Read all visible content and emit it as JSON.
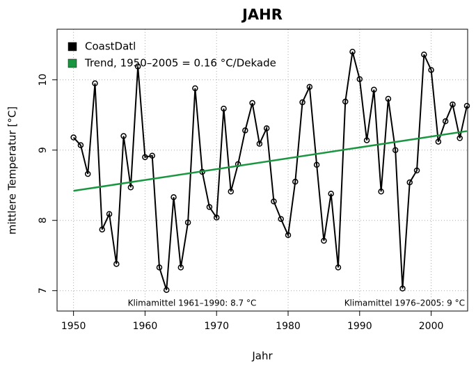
{
  "chart_data": {
    "type": "line",
    "title": "JAHR",
    "xlabel": "Jahr",
    "ylabel": "mittlere Temperatur [°C]",
    "x": [
      1950,
      1951,
      1952,
      1953,
      1954,
      1955,
      1956,
      1957,
      1958,
      1959,
      1960,
      1961,
      1962,
      1963,
      1964,
      1965,
      1966,
      1967,
      1968,
      1969,
      1970,
      1971,
      1972,
      1973,
      1974,
      1975,
      1976,
      1977,
      1978,
      1979,
      1980,
      1981,
      1982,
      1983,
      1984,
      1985,
      1986,
      1987,
      1988,
      1989,
      1990,
      1991,
      1992,
      1993,
      1994,
      1995,
      1996,
      1997,
      1998,
      1999,
      2000,
      2001,
      2002,
      2003,
      2004,
      2005
    ],
    "series": [
      {
        "name": "CoastDatl",
        "color": "#000000",
        "values": [
          9.18,
          9.07,
          8.66,
          9.95,
          7.87,
          8.09,
          7.38,
          9.2,
          8.47,
          10.19,
          8.9,
          8.92,
          7.33,
          7.01,
          8.33,
          7.33,
          7.97,
          9.88,
          8.69,
          8.19,
          8.04,
          9.59,
          8.41,
          8.8,
          9.28,
          9.67,
          9.09,
          9.31,
          8.27,
          8.02,
          7.79,
          8.55,
          9.68,
          9.9,
          8.79,
          7.71,
          8.38,
          7.33,
          9.69,
          10.4,
          10.01,
          9.14,
          9.86,
          8.41,
          9.73,
          9.0,
          7.03,
          8.54,
          8.71,
          10.36,
          10.14,
          9.12,
          9.41,
          9.65,
          9.17,
          9.63
        ]
      },
      {
        "name": "Trend, 1950–2005 = 0.16 °C/Dekade",
        "color": "#1a9641",
        "x": [
          1950,
          2005
        ],
        "values": [
          8.42,
          9.27
        ]
      }
    ],
    "annotations": [
      "Klimamittel 1961–1990: 8.7 °C",
      "Klimamittel 1976–2005: 9 °C"
    ],
    "xlim": [
      1947.7,
      2005.1
    ],
    "ylim": [
      6.71,
      10.72
    ],
    "xticks": [
      1950,
      1960,
      1970,
      1980,
      1990,
      2000
    ],
    "yticks": [
      7,
      8,
      9,
      10
    ],
    "grid": true,
    "legend": "topleft"
  }
}
